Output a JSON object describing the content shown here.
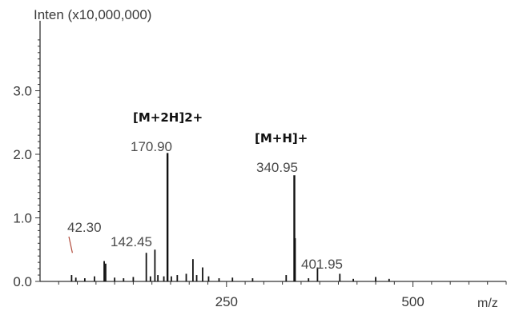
{
  "chart_data": {
    "type": "bar",
    "y_axis_label": "Inten (x10,000,000)",
    "x_axis_label": "m/z",
    "x_ticks": [
      250,
      500
    ],
    "y_ticks": [
      "0.0",
      "1.0",
      "2.0",
      "3.0"
    ],
    "xlim": [
      0,
      625
    ],
    "ylim": [
      0,
      4.0
    ],
    "grid": false,
    "peaks": [
      {
        "mz": 42.3,
        "intensity": 0.1
      },
      {
        "mz": 48,
        "intensity": 0.06
      },
      {
        "mz": 60,
        "intensity": 0.05
      },
      {
        "mz": 73,
        "intensity": 0.08
      },
      {
        "mz": 86,
        "intensity": 0.32
      },
      {
        "mz": 88,
        "intensity": 0.28
      },
      {
        "mz": 100,
        "intensity": 0.06
      },
      {
        "mz": 112,
        "intensity": 0.05
      },
      {
        "mz": 125,
        "intensity": 0.07
      },
      {
        "mz": 142.45,
        "intensity": 0.45
      },
      {
        "mz": 148,
        "intensity": 0.08
      },
      {
        "mz": 154,
        "intensity": 0.5
      },
      {
        "mz": 158,
        "intensity": 0.1
      },
      {
        "mz": 166,
        "intensity": 0.08
      },
      {
        "mz": 170.9,
        "intensity": 2.02
      },
      {
        "mz": 176,
        "intensity": 0.08
      },
      {
        "mz": 184,
        "intensity": 0.1
      },
      {
        "mz": 196,
        "intensity": 0.12
      },
      {
        "mz": 205,
        "intensity": 0.35
      },
      {
        "mz": 210,
        "intensity": 0.1
      },
      {
        "mz": 218,
        "intensity": 0.22
      },
      {
        "mz": 226,
        "intensity": 0.08
      },
      {
        "mz": 240,
        "intensity": 0.05
      },
      {
        "mz": 258,
        "intensity": 0.06
      },
      {
        "mz": 285,
        "intensity": 0.05
      },
      {
        "mz": 330,
        "intensity": 0.1
      },
      {
        "mz": 340.95,
        "intensity": 1.67
      },
      {
        "mz": 342,
        "intensity": 0.68
      },
      {
        "mz": 360,
        "intensity": 0.05
      },
      {
        "mz": 372,
        "intensity": 0.22
      },
      {
        "mz": 401.95,
        "intensity": 0.12
      },
      {
        "mz": 420,
        "intensity": 0.04
      },
      {
        "mz": 450,
        "intensity": 0.07
      },
      {
        "mz": 468,
        "intensity": 0.04
      }
    ],
    "peak_labels": [
      {
        "text": "42.30",
        "mz": 42.3
      },
      {
        "text": "142.45",
        "mz": 142.45
      },
      {
        "text": "170.90",
        "mz": 170.9
      },
      {
        "text": "340.95",
        "mz": 340.95
      },
      {
        "text": "401.95",
        "mz": 401.95
      }
    ],
    "ion_labels": [
      {
        "text": "[M+2H]2+",
        "mz": 170.9
      },
      {
        "text": "[M+H]+",
        "mz": 340.95
      }
    ]
  }
}
